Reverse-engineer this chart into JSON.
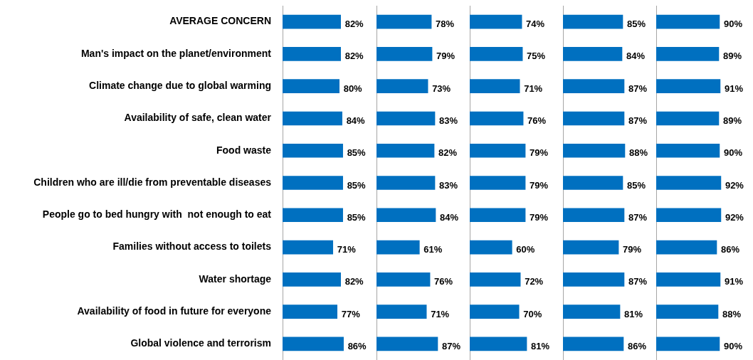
{
  "chart_data": [
    {
      "type": "bar",
      "orientation": "horizontal",
      "tick_labels": "y",
      "categories": [
        "AVERAGE CONCERN",
        "Man's impact on the planet/environment",
        "Climate change due to global warming",
        "Availability of safe, clean water",
        "Food waste",
        "Children who are ill/die from preventable diseases",
        "People go to bed hungry with  not enough to eat",
        "Families without access to toilets",
        "Water shortage",
        "Availability of food in future for everyone",
        "Global violence and terrorism"
      ],
      "color": "#0070c0",
      "values": [
        82,
        82,
        80,
        84,
        85,
        85,
        85,
        71,
        82,
        77,
        86
      ],
      "value_labels": [
        "82%",
        "82%",
        "80%",
        "84%",
        "85%",
        "85%",
        "85%",
        "71%",
        "82%",
        "77%",
        "86%"
      ]
    },
    {
      "type": "bar",
      "orientation": "horizontal",
      "tick_labels": false,
      "categories": [
        null,
        null,
        null,
        null,
        null,
        null,
        null,
        null,
        null,
        null,
        null
      ],
      "color": "#0070c0",
      "values": [
        78,
        79,
        73,
        83,
        82,
        83,
        84,
        61,
        76,
        71,
        87
      ],
      "value_labels": [
        "78%",
        "79%",
        "73%",
        "83%",
        "82%",
        "83%",
        "84%",
        "61%",
        "76%",
        "71%",
        "87%"
      ]
    },
    {
      "type": "bar",
      "orientation": "horizontal",
      "tick_labels": false,
      "categories": [
        null,
        null,
        null,
        null,
        null,
        null,
        null,
        null,
        null,
        null,
        null
      ],
      "color": "#0070c0",
      "values": [
        74,
        75,
        71,
        76,
        79,
        79,
        79,
        60,
        72,
        70,
        81
      ],
      "value_labels": [
        "74%",
        "75%",
        "71%",
        "76%",
        "79%",
        "79%",
        "79%",
        "60%",
        "72%",
        "70%",
        "81%"
      ]
    },
    {
      "type": "bar",
      "orientation": "horizontal",
      "tick_labels": false,
      "categories": [
        null,
        null,
        null,
        null,
        null,
        null,
        null,
        null,
        null,
        null,
        null
      ],
      "color": "#0070c0",
      "values": [
        85,
        84,
        87,
        87,
        88,
        85,
        87,
        79,
        87,
        81,
        86
      ],
      "value_labels": [
        "85%",
        "84%",
        "87%",
        "87%",
        "88%",
        "85%",
        "87%",
        "79%",
        "87%",
        "81%",
        "86%"
      ]
    },
    {
      "type": "bar",
      "orientation": "horizontal",
      "tick_labels": false,
      "categories": [
        null,
        null,
        null,
        null,
        null,
        null,
        null,
        null,
        null,
        null,
        null
      ],
      "color": "#0070c0",
      "values": [
        90,
        89,
        91,
        89,
        90,
        92,
        92,
        86,
        91,
        88,
        90
      ],
      "value_labels": [
        "90%",
        "89%",
        "91%",
        "89%",
        "90%",
        "92%",
        "92%",
        "86%",
        "91%",
        "88%",
        "90%"
      ]
    }
  ]
}
